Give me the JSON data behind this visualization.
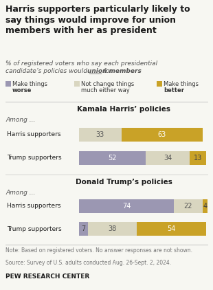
{
  "title": "Harris supporters particularly likely to\nsay things would improve for union\nmembers with her as president",
  "subtitle_line1": "% of registered voters who say each presidential",
  "subtitle_line2": "candidate’s policies would ____ for",
  "subtitle_bold": "union members",
  "legend_labels": [
    "Make things\nworse",
    "Not change things\nmuch either way",
    "Make things\nbetter"
  ],
  "color_worse": "#9b97b2",
  "color_neutral": "#d9d6c0",
  "color_better": "#c9a227",
  "section1_title": "Kamala Harris’ policies",
  "section2_title": "Donald Trump’s policies",
  "section1": [
    {
      "label": "Harris supporters",
      "worse": 0,
      "neutral": 33,
      "better": 63
    },
    {
      "label": "Trump supporters",
      "worse": 52,
      "neutral": 34,
      "better": 13
    }
  ],
  "section2": [
    {
      "label": "Harris supporters",
      "worse": 74,
      "neutral": 22,
      "better": 4
    },
    {
      "label": "Trump supporters",
      "worse": 7,
      "neutral": 38,
      "better": 54
    }
  ],
  "among_label": "Among ...",
  "note": "Note: Based on registered voters. No answer responses are not shown.",
  "source": "Source: Survey of U.S. adults conducted Aug. 26-Sept. 2, 2024.",
  "footer": "PEW RESEARCH CENTER",
  "bg_color": "#f7f7f2",
  "text_dark": "#1a1a1a",
  "text_mid": "#555555",
  "text_light": "#777777"
}
